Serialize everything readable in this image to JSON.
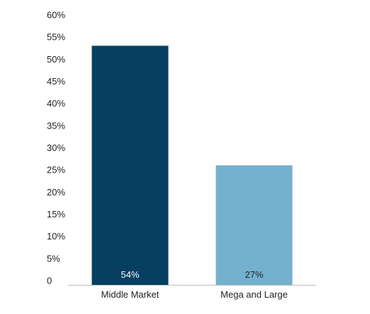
{
  "chart_data": {
    "type": "bar",
    "categories": [
      "Middle Market",
      "Mega and Large"
    ],
    "values": [
      54,
      27
    ],
    "data_labels": [
      "54%",
      "27%"
    ],
    "ylim": [
      0,
      60
    ],
    "yticks": [
      0,
      5,
      10,
      15,
      20,
      25,
      30,
      35,
      40,
      45,
      50,
      55,
      60
    ],
    "ytick_labels": [
      "0",
      "5%",
      "10%",
      "15%",
      "20%",
      "25%",
      "30%",
      "35%",
      "40%",
      "45%",
      "50%",
      "55%",
      "60%"
    ],
    "grid": false,
    "legend": "none",
    "colors": {
      "bars": [
        "#073f63",
        "#74b1cf"
      ],
      "data_label_text": [
        "#ffffff",
        "#1f1f1f"
      ],
      "axis": "#bfbfbf"
    }
  }
}
